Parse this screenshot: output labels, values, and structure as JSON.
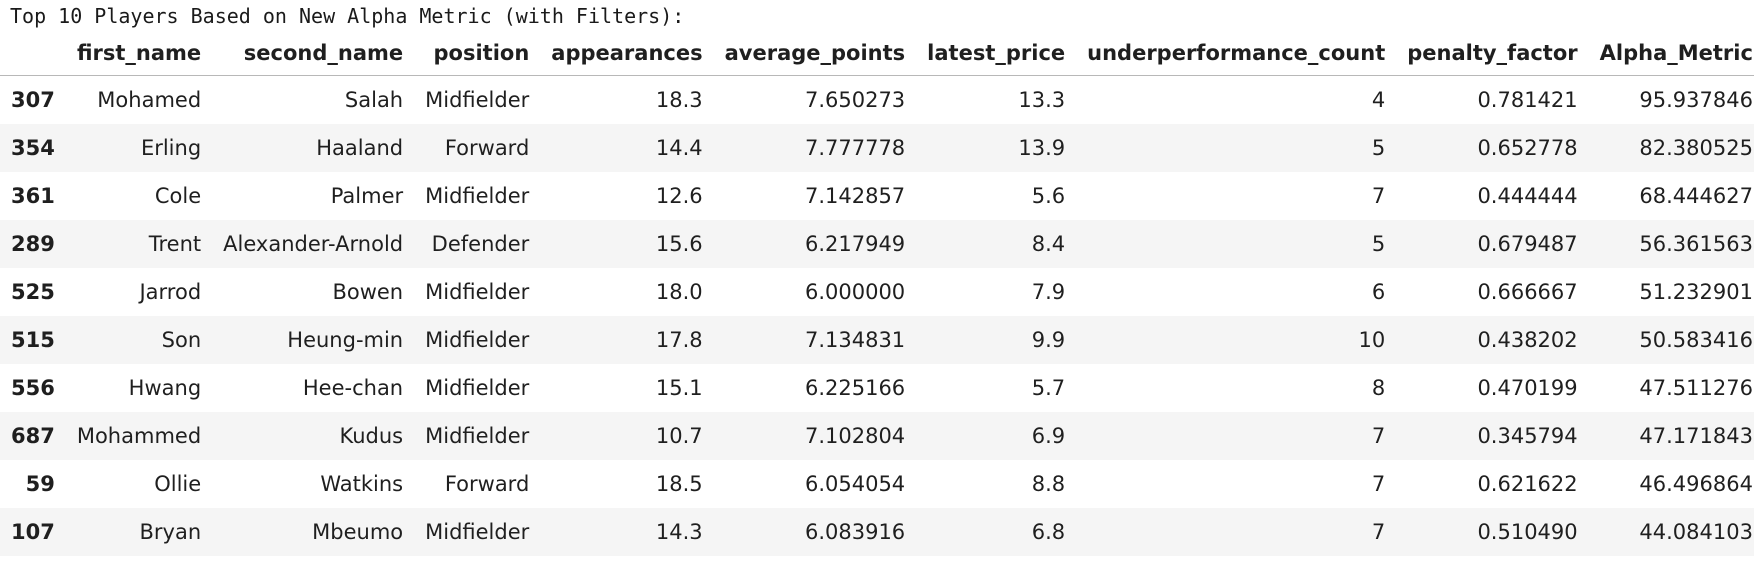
{
  "output": {
    "title": "Top 10 Players Based on New Alpha Metric (with Filters):"
  },
  "table": {
    "columns": [
      "first_name",
      "second_name",
      "position",
      "appearances",
      "average_points",
      "latest_price",
      "underperformance_count",
      "penalty_factor",
      "Alpha_Metric"
    ],
    "rows": [
      {
        "index": "307",
        "first_name": "Mohamed",
        "second_name": "Salah",
        "position": "Midfielder",
        "appearances": "18.3",
        "average_points": "7.650273",
        "latest_price": "13.3",
        "underperformance_count": "4",
        "penalty_factor": "0.781421",
        "Alpha_Metric": "95.937846"
      },
      {
        "index": "354",
        "first_name": "Erling",
        "second_name": "Haaland",
        "position": "Forward",
        "appearances": "14.4",
        "average_points": "7.777778",
        "latest_price": "13.9",
        "underperformance_count": "5",
        "penalty_factor": "0.652778",
        "Alpha_Metric": "82.380525"
      },
      {
        "index": "361",
        "first_name": "Cole",
        "second_name": "Palmer",
        "position": "Midfielder",
        "appearances": "12.6",
        "average_points": "7.142857",
        "latest_price": "5.6",
        "underperformance_count": "7",
        "penalty_factor": "0.444444",
        "Alpha_Metric": "68.444627"
      },
      {
        "index": "289",
        "first_name": "Trent",
        "second_name": "Alexander-Arnold",
        "position": "Defender",
        "appearances": "15.6",
        "average_points": "6.217949",
        "latest_price": "8.4",
        "underperformance_count": "5",
        "penalty_factor": "0.679487",
        "Alpha_Metric": "56.361563"
      },
      {
        "index": "525",
        "first_name": "Jarrod",
        "second_name": "Bowen",
        "position": "Midfielder",
        "appearances": "18.0",
        "average_points": "6.000000",
        "latest_price": "7.9",
        "underperformance_count": "6",
        "penalty_factor": "0.666667",
        "Alpha_Metric": "51.232901"
      },
      {
        "index": "515",
        "first_name": "Son",
        "second_name": "Heung-min",
        "position": "Midfielder",
        "appearances": "17.8",
        "average_points": "7.134831",
        "latest_price": "9.9",
        "underperformance_count": "10",
        "penalty_factor": "0.438202",
        "Alpha_Metric": "50.583416"
      },
      {
        "index": "556",
        "first_name": "Hwang",
        "second_name": "Hee-chan",
        "position": "Midfielder",
        "appearances": "15.1",
        "average_points": "6.225166",
        "latest_price": "5.7",
        "underperformance_count": "8",
        "penalty_factor": "0.470199",
        "Alpha_Metric": "47.511276"
      },
      {
        "index": "687",
        "first_name": "Mohammed",
        "second_name": "Kudus",
        "position": "Midfielder",
        "appearances": "10.7",
        "average_points": "7.102804",
        "latest_price": "6.9",
        "underperformance_count": "7",
        "penalty_factor": "0.345794",
        "Alpha_Metric": "47.171843"
      },
      {
        "index": "59",
        "first_name": "Ollie",
        "second_name": "Watkins",
        "position": "Forward",
        "appearances": "18.5",
        "average_points": "6.054054",
        "latest_price": "8.8",
        "underperformance_count": "7",
        "penalty_factor": "0.621622",
        "Alpha_Metric": "46.496864"
      },
      {
        "index": "107",
        "first_name": "Bryan",
        "second_name": "Mbeumo",
        "position": "Midfielder",
        "appearances": "14.3",
        "average_points": "6.083916",
        "latest_price": "6.8",
        "underperformance_count": "7",
        "penalty_factor": "0.510490",
        "Alpha_Metric": "44.084103"
      }
    ]
  }
}
